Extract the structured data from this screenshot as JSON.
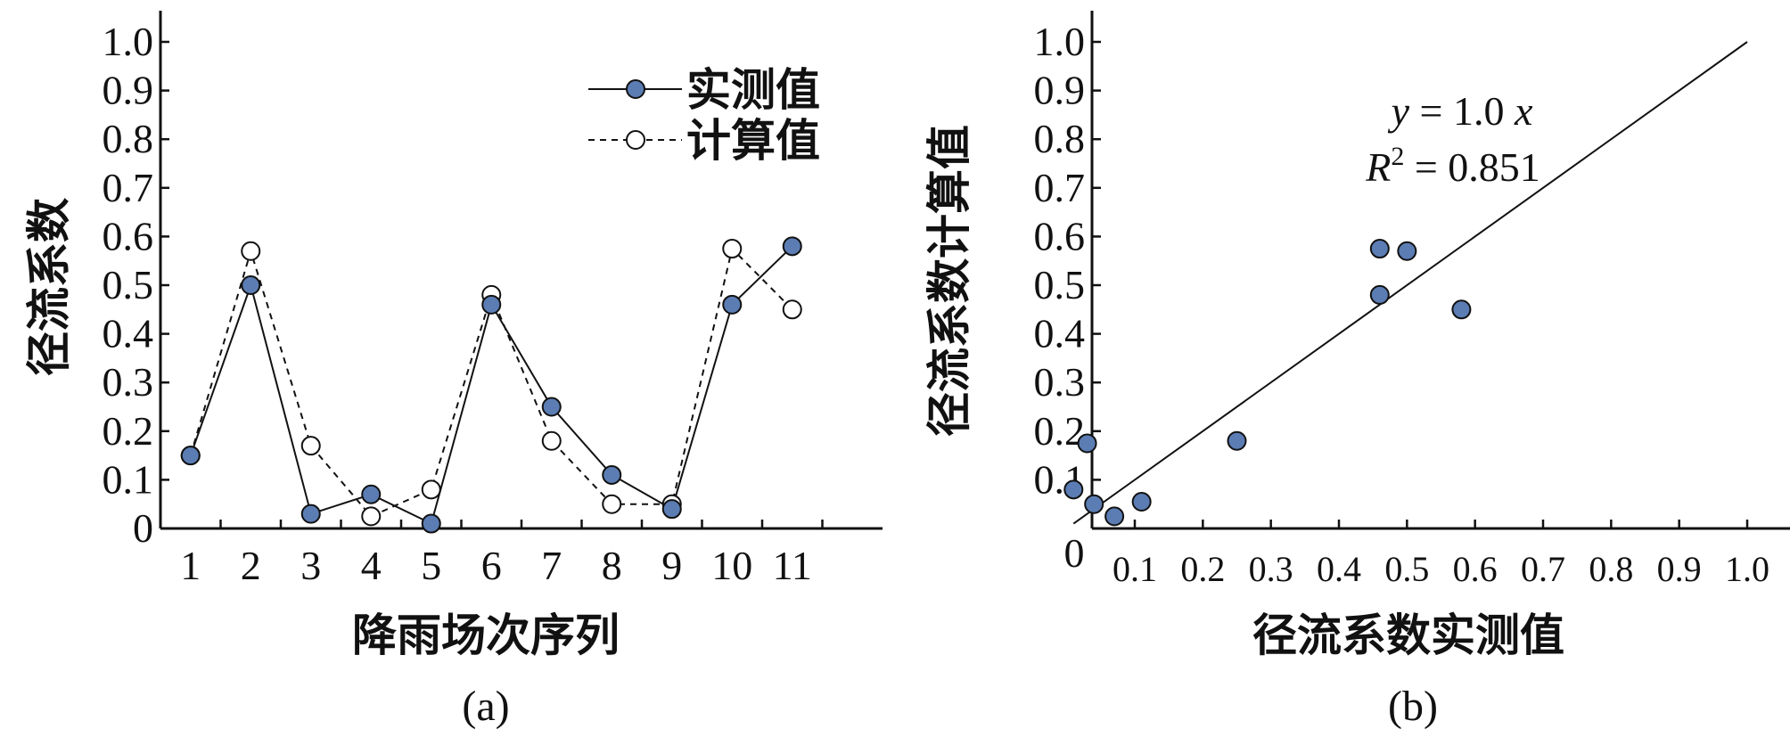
{
  "chart_data": [
    {
      "type": "line",
      "panel_label": "(a)",
      "xlabel": "降雨场次序列",
      "ylabel": "径流系数",
      "x": [
        1,
        2,
        3,
        4,
        5,
        6,
        7,
        8,
        9,
        10,
        11
      ],
      "x_tick_labels": [
        "1",
        "2",
        "3",
        "4",
        "5",
        "6",
        "7",
        "8",
        "9",
        "10",
        "11"
      ],
      "y_tick_labels": [
        "0",
        "0.1",
        "0.2",
        "0.3",
        "0.4",
        "0.5",
        "0.6",
        "0.7",
        "0.8",
        "0.9",
        "1.0"
      ],
      "xlim": [
        0.5,
        12.5
      ],
      "ylim": [
        0,
        1.0
      ],
      "legend": "top-right",
      "series": [
        {
          "name": "实测值",
          "style": "solid",
          "marker": "filled-circle",
          "marker_color": "#5b7db4",
          "values": [
            0.15,
            0.5,
            0.03,
            0.07,
            0.01,
            0.46,
            0.25,
            0.11,
            0.04,
            0.46,
            0.58
          ]
        },
        {
          "name": "计算值",
          "style": "dashed",
          "marker": "open-circle",
          "values": [
            0.15,
            0.57,
            0.17,
            0.025,
            0.08,
            0.48,
            0.18,
            0.05,
            0.05,
            0.575,
            0.45
          ]
        }
      ]
    },
    {
      "type": "scatter",
      "panel_label": "(b)",
      "xlabel": "径流系数实测值",
      "ylabel": "径流系数计算值",
      "x_tick_labels": [
        "0.1",
        "0.2",
        "0.3",
        "0.4",
        "0.5",
        "0.6",
        "0.7",
        "0.8",
        "0.9",
        "1.0"
      ],
      "y_tick_labels": [
        "0.1",
        "0.2",
        "0.3",
        "0.4",
        "0.5",
        "0.6",
        "0.7",
        "0.8",
        "0.9",
        "1.0"
      ],
      "origin_label": "0",
      "xlim": [
        0,
        1.05
      ],
      "ylim": [
        0,
        1.0
      ],
      "marker_color": "#5b7db4",
      "points": [
        {
          "x": 0.01,
          "y": 0.08
        },
        {
          "x": 0.03,
          "y": 0.175
        },
        {
          "x": 0.04,
          "y": 0.05
        },
        {
          "x": 0.07,
          "y": 0.025
        },
        {
          "x": 0.11,
          "y": 0.055
        },
        {
          "x": 0.25,
          "y": 0.18
        },
        {
          "x": 0.46,
          "y": 0.575
        },
        {
          "x": 0.46,
          "y": 0.48
        },
        {
          "x": 0.5,
          "y": 0.57
        },
        {
          "x": 0.58,
          "y": 0.45
        }
      ],
      "fit_line": {
        "slope": 1.0,
        "intercept": 0,
        "x_range": [
          0.01,
          1.0
        ]
      },
      "annotation": {
        "eq_y": "y",
        "eq_rest": " = 1.0 ",
        "eq_x": "x",
        "r_label": "R",
        "r_sup": "2",
        "r_rest": " = 0.851"
      }
    }
  ]
}
